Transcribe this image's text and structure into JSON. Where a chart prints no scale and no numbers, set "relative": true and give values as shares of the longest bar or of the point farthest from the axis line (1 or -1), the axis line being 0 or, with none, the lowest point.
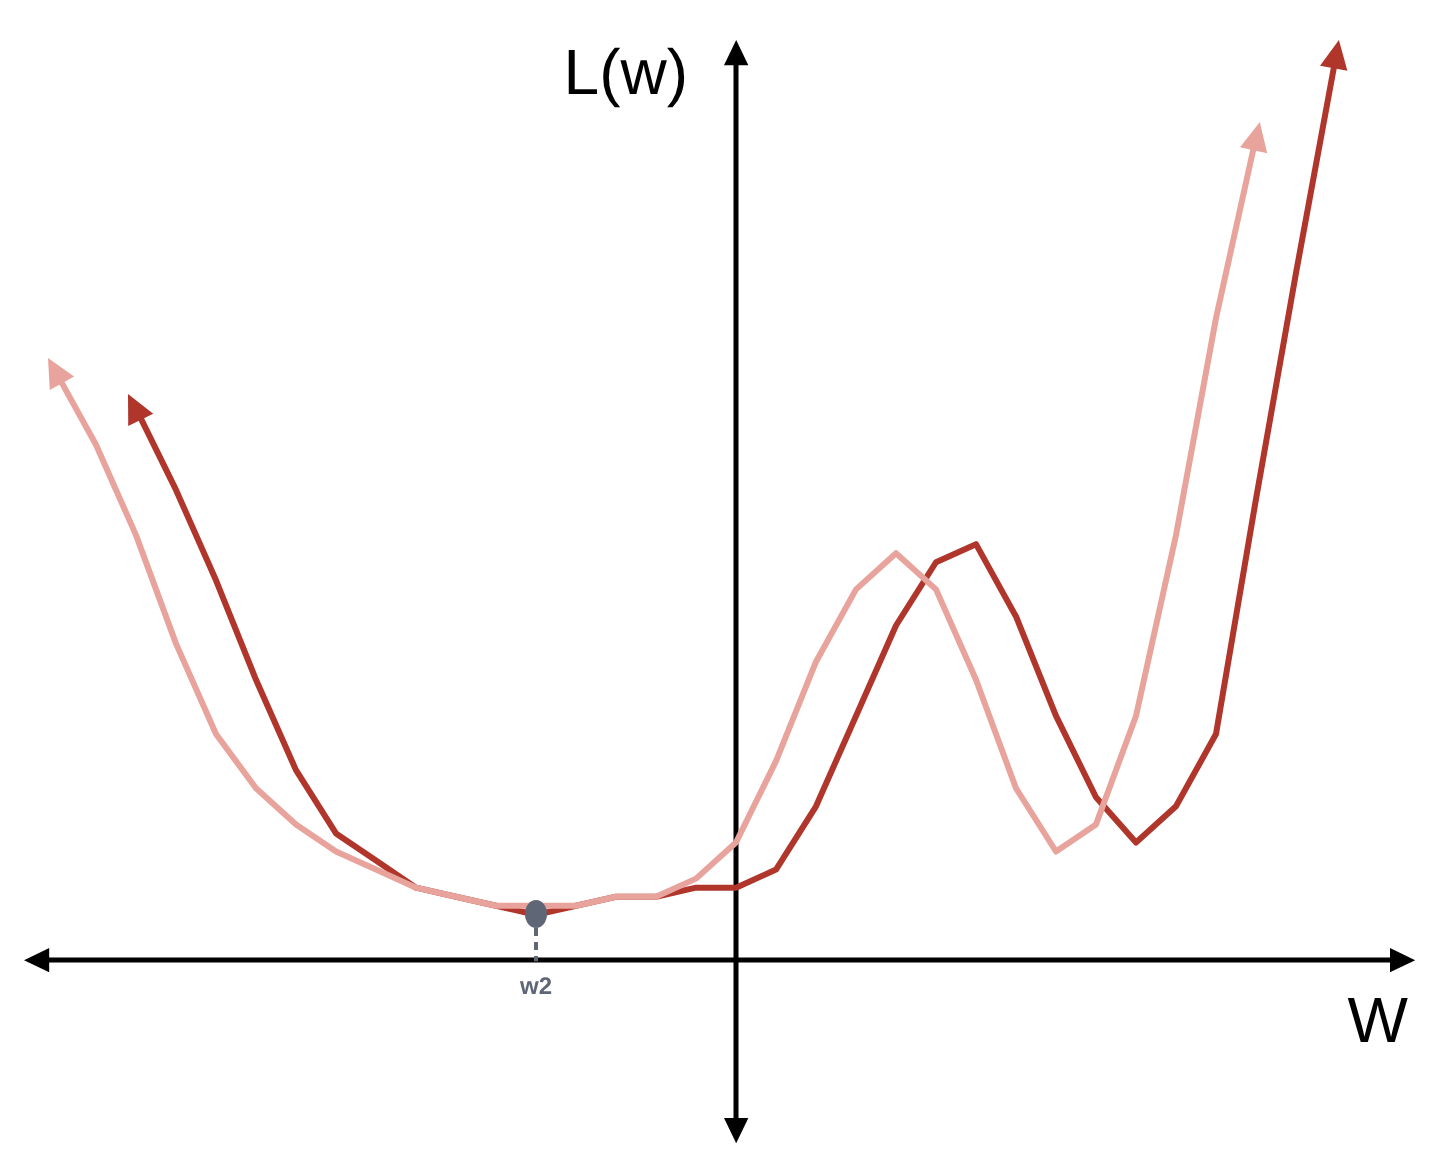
{
  "chart_data": {
    "type": "line",
    "relative": true,
    "xlabel": "W",
    "ylabel": "L(w)",
    "annotations": [
      "w2"
    ],
    "categories": [
      null,
      null,
      null,
      null,
      null,
      null,
      null,
      null,
      null,
      null,
      null,
      null,
      null,
      null,
      null,
      null,
      null,
      null,
      null,
      null,
      null,
      null,
      null,
      null,
      null,
      null,
      null,
      null,
      null,
      null,
      null,
      null,
      null,
      null,
      null
    ],
    "series": [
      {
        "color": "#e8a49c",
        "values": [
          null,
          0.65,
          0.57,
          0.47,
          0.35,
          0.25,
          0.19,
          0.15,
          0.12,
          0.1,
          0.08,
          0.07,
          0.06,
          0.06,
          0.06,
          0.07,
          0.07,
          0.09,
          0.13,
          0.22,
          0.33,
          0.41,
          0.45,
          0.41,
          0.31,
          0.19,
          0.12,
          0.15,
          0.27,
          0.47,
          0.71,
          0.91,
          null,
          null,
          null
        ]
      },
      {
        "color": "#b0362c",
        "values": [
          null,
          null,
          null,
          0.61,
          0.52,
          0.42,
          0.31,
          0.21,
          0.14,
          0.11,
          0.08,
          0.07,
          0.06,
          0.05,
          0.06,
          0.07,
          0.07,
          0.08,
          0.08,
          0.1,
          0.17,
          0.27,
          0.37,
          0.44,
          0.46,
          0.38,
          0.27,
          0.18,
          0.13,
          0.17,
          0.25,
          0.51,
          0.76,
          1,
          null
        ]
      }
    ]
  }
}
